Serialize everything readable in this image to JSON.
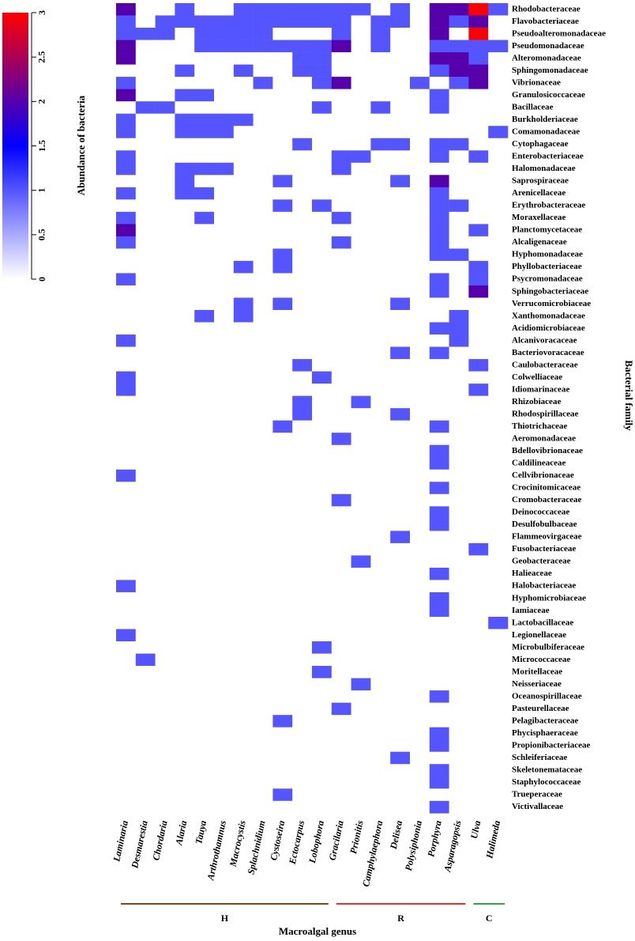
{
  "chart_data": {
    "type": "heatmap",
    "x_label": "Macroalgal genus",
    "y_label": "Bacterial family",
    "colorbar_label": "Abundance of bacteria",
    "colorscale": [
      "#ffffff",
      "#0000ff",
      "#ff0000"
    ],
    "zlim": [
      0,
      3
    ],
    "zticks": [
      0,
      0.5,
      1,
      1.5,
      2,
      2.5,
      3
    ],
    "columns": [
      "Laminaria",
      "Desmarestia",
      "Chordaria",
      "Alaria",
      "Tauya",
      "Arthrothamnus",
      "Macrocystis",
      "Splachnidium",
      "Cystoseira",
      "Ectocarpus",
      "Lobophora",
      "Gracilaria",
      "Prionitis",
      "Camphylaephora",
      "Delisea",
      "Polysiphonia",
      "Porphyra",
      "Asparagopsis",
      "Ulva",
      "Halimeda"
    ],
    "groups": [
      {
        "label": "H",
        "first": 0,
        "last": 10,
        "color": "#7a4a10"
      },
      {
        "label": "R",
        "first": 11,
        "last": 17,
        "color": "#e8302a"
      },
      {
        "label": "C",
        "first": 18,
        "last": 19,
        "color": "#2aa84a"
      }
    ],
    "rows": [
      "Rhodobacteraceae",
      "Flavobacteriaceae",
      "Pseudoalteromonadaceae",
      "Pseudomonadaceae",
      "Alteromonadaceae",
      "Sphingomonadaceae",
      "Vibrionaceae",
      "Granulosicoccaceae",
      "Bacillaceae",
      "Burkholderiaceae",
      "Comamonadaceae",
      "Cytophagaceae",
      "Enterobacteriaceae",
      "Halomonadaceae",
      "Saprospiraceae",
      "Arenicellaceae",
      "Erythrobacteraceae",
      "Moraxellaceae",
      "Planctomycetaceae",
      "Alcaligenaceae",
      "Hyphomonadaceae",
      "Phyllobacteriaceae",
      "Psycromonadaceae",
      "Sphingobacteriaceae",
      "Verrucomicrobiaceae",
      "Xanthomonadaceae",
      "Acidiomicrobiaceae",
      "Alcanivoracaceae",
      "Bacteriovoracaceae",
      "Caulobacteraceae",
      "Colwelliaceae",
      "Idiomarinaceae",
      "Rhizobiaceae",
      "Rhodospirillaceae",
      "Thiotrichaceae",
      "Aeromonadaceae",
      "Bdellovibrionaceae",
      "Caldilineaceae",
      "Cellvibrionaceae",
      "Crocinitomicaceae",
      "Cromobacteraceae",
      "Deinococcaceae",
      "Desulfobulbaceae",
      "Flammeovirgaceae",
      "Fusobacteriaceae",
      "Geobacteraceae",
      "Halieaceae",
      "Halobacteriaceae",
      "Hyphomicrobiaceae",
      "Iamiaceae",
      "Lactobacillaceae",
      "Legionellaceae",
      "Microbulbiferaceae",
      "Micrococcaceae",
      "Moritellaceae",
      "Neisseriaceae",
      "Oceanospirillaceae",
      "Pasteurellaceae",
      "Pelagibacteraceae",
      "Phycisphaeraceae",
      "Propionibacteriaceae",
      "Schleiferiaceae",
      "Skeletonemataceae",
      "Staphylococcaceae",
      "Trueperaceae",
      "Victivallaceae"
    ],
    "values": [
      [
        2,
        0,
        0,
        1,
        0,
        0,
        1,
        1,
        1,
        1,
        1,
        1,
        1,
        0,
        1,
        0,
        2,
        2,
        3,
        1
      ],
      [
        1,
        0,
        1,
        1,
        1,
        1,
        1,
        1,
        1,
        1,
        1,
        1,
        0,
        1,
        1,
        0,
        2,
        1,
        2,
        0
      ],
      [
        1,
        1,
        1,
        0,
        1,
        1,
        1,
        1,
        0,
        0,
        0,
        1,
        0,
        1,
        0,
        0,
        2,
        0,
        3,
        0
      ],
      [
        2,
        0,
        0,
        0,
        1,
        1,
        1,
        1,
        1,
        1,
        1,
        2,
        0,
        1,
        0,
        0,
        1,
        1,
        1,
        1
      ],
      [
        2,
        0,
        0,
        0,
        0,
        0,
        0,
        0,
        0,
        1,
        1,
        0,
        0,
        0,
        0,
        0,
        2,
        2,
        1,
        0
      ],
      [
        0,
        0,
        0,
        1,
        0,
        0,
        1,
        0,
        0,
        1,
        1,
        0,
        0,
        0,
        0,
        0,
        1,
        2,
        2,
        0
      ],
      [
        1,
        0,
        0,
        0,
        0,
        0,
        0,
        1,
        0,
        0,
        1,
        2,
        0,
        0,
        0,
        1,
        0,
        1,
        2,
        0
      ],
      [
        2,
        0,
        0,
        1,
        1,
        0,
        0,
        0,
        0,
        0,
        0,
        0,
        0,
        0,
        0,
        0,
        1,
        0,
        0,
        0
      ],
      [
        0,
        1,
        1,
        0,
        0,
        0,
        0,
        0,
        0,
        0,
        1,
        0,
        0,
        1,
        0,
        0,
        1,
        0,
        0,
        0
      ],
      [
        1,
        0,
        0,
        1,
        1,
        1,
        1,
        0,
        0,
        0,
        0,
        0,
        0,
        0,
        0,
        0,
        0,
        0,
        0,
        0
      ],
      [
        1,
        0,
        0,
        1,
        1,
        1,
        0,
        0,
        0,
        0,
        0,
        0,
        0,
        0,
        0,
        0,
        0,
        0,
        0,
        1
      ],
      [
        0,
        0,
        0,
        0,
        0,
        0,
        0,
        0,
        0,
        1,
        0,
        0,
        0,
        1,
        1,
        0,
        1,
        1,
        0,
        0
      ],
      [
        1,
        0,
        0,
        0,
        0,
        0,
        0,
        0,
        0,
        0,
        0,
        1,
        1,
        0,
        0,
        0,
        1,
        0,
        1,
        0
      ],
      [
        1,
        0,
        0,
        1,
        1,
        1,
        0,
        0,
        0,
        0,
        0,
        1,
        0,
        0,
        0,
        0,
        0,
        0,
        0,
        0
      ],
      [
        0,
        0,
        0,
        1,
        0,
        0,
        0,
        0,
        1,
        0,
        0,
        0,
        0,
        0,
        1,
        0,
        2,
        0,
        0,
        0
      ],
      [
        1,
        0,
        0,
        1,
        1,
        0,
        0,
        0,
        0,
        0,
        0,
        0,
        0,
        0,
        0,
        0,
        1,
        0,
        0,
        0
      ],
      [
        0,
        0,
        0,
        0,
        0,
        0,
        0,
        0,
        1,
        0,
        1,
        0,
        0,
        0,
        0,
        0,
        1,
        1,
        0,
        0
      ],
      [
        1,
        0,
        0,
        0,
        1,
        0,
        0,
        0,
        0,
        0,
        0,
        1,
        0,
        0,
        0,
        0,
        1,
        0,
        0,
        0
      ],
      [
        2,
        0,
        0,
        0,
        0,
        0,
        0,
        0,
        0,
        0,
        0,
        0,
        0,
        0,
        0,
        0,
        1,
        0,
        1,
        0
      ],
      [
        1,
        0,
        0,
        0,
        0,
        0,
        0,
        0,
        0,
        0,
        0,
        1,
        0,
        0,
        0,
        0,
        1,
        0,
        0,
        0
      ],
      [
        0,
        0,
        0,
        0,
        0,
        0,
        0,
        0,
        1,
        0,
        0,
        0,
        0,
        0,
        0,
        0,
        1,
        1,
        0,
        0
      ],
      [
        0,
        0,
        0,
        0,
        0,
        0,
        1,
        0,
        1,
        0,
        0,
        0,
        0,
        0,
        0,
        0,
        0,
        0,
        1,
        0
      ],
      [
        1,
        0,
        0,
        0,
        0,
        0,
        0,
        0,
        0,
        0,
        0,
        0,
        0,
        0,
        0,
        0,
        1,
        0,
        1,
        0
      ],
      [
        0,
        0,
        0,
        0,
        0,
        0,
        0,
        0,
        0,
        0,
        0,
        0,
        0,
        0,
        0,
        0,
        1,
        0,
        2,
        0
      ],
      [
        0,
        0,
        0,
        0,
        0,
        0,
        1,
        0,
        1,
        0,
        0,
        0,
        0,
        0,
        1,
        0,
        0,
        0,
        0,
        0
      ],
      [
        0,
        0,
        0,
        0,
        1,
        0,
        1,
        0,
        0,
        0,
        0,
        0,
        0,
        0,
        0,
        0,
        0,
        1,
        0,
        0
      ],
      [
        0,
        0,
        0,
        0,
        0,
        0,
        0,
        0,
        0,
        0,
        0,
        0,
        0,
        0,
        0,
        0,
        1,
        1,
        0,
        0
      ],
      [
        1,
        0,
        0,
        0,
        0,
        0,
        0,
        0,
        0,
        0,
        0,
        0,
        0,
        0,
        0,
        0,
        0,
        1,
        0,
        0
      ],
      [
        0,
        0,
        0,
        0,
        0,
        0,
        0,
        0,
        0,
        0,
        0,
        0,
        0,
        0,
        1,
        0,
        1,
        0,
        0,
        0
      ],
      [
        0,
        0,
        0,
        0,
        0,
        0,
        0,
        0,
        0,
        1,
        0,
        0,
        0,
        0,
        0,
        0,
        0,
        0,
        1,
        0
      ],
      [
        1,
        0,
        0,
        0,
        0,
        0,
        0,
        0,
        0,
        0,
        1,
        0,
        0,
        0,
        0,
        0,
        0,
        0,
        0,
        0
      ],
      [
        1,
        0,
        0,
        0,
        0,
        0,
        0,
        0,
        0,
        0,
        0,
        0,
        0,
        0,
        0,
        0,
        0,
        0,
        1,
        0
      ],
      [
        0,
        0,
        0,
        0,
        0,
        0,
        0,
        0,
        0,
        1,
        0,
        0,
        1,
        0,
        0,
        0,
        0,
        0,
        0,
        0
      ],
      [
        0,
        0,
        0,
        0,
        0,
        0,
        0,
        0,
        0,
        1,
        0,
        0,
        0,
        0,
        1,
        0,
        0,
        0,
        0,
        0
      ],
      [
        0,
        0,
        0,
        0,
        0,
        0,
        0,
        0,
        1,
        0,
        0,
        0,
        0,
        0,
        0,
        0,
        1,
        0,
        0,
        0
      ],
      [
        0,
        0,
        0,
        0,
        0,
        0,
        0,
        0,
        0,
        0,
        0,
        1,
        0,
        0,
        0,
        0,
        0,
        0,
        0,
        0
      ],
      [
        0,
        0,
        0,
        0,
        0,
        0,
        0,
        0,
        0,
        0,
        0,
        0,
        0,
        0,
        0,
        0,
        1,
        0,
        0,
        0
      ],
      [
        0,
        0,
        0,
        0,
        0,
        0,
        0,
        0,
        0,
        0,
        0,
        0,
        0,
        0,
        0,
        0,
        1,
        0,
        0,
        0
      ],
      [
        1,
        0,
        0,
        0,
        0,
        0,
        0,
        0,
        0,
        0,
        0,
        0,
        0,
        0,
        0,
        0,
        0,
        0,
        0,
        0
      ],
      [
        0,
        0,
        0,
        0,
        0,
        0,
        0,
        0,
        0,
        0,
        0,
        0,
        0,
        0,
        0,
        0,
        1,
        0,
        0,
        0
      ],
      [
        0,
        0,
        0,
        0,
        0,
        0,
        0,
        0,
        0,
        0,
        0,
        1,
        0,
        0,
        0,
        0,
        0,
        0,
        0,
        0
      ],
      [
        0,
        0,
        0,
        0,
        0,
        0,
        0,
        0,
        0,
        0,
        0,
        0,
        0,
        0,
        0,
        0,
        1,
        0,
        0,
        0
      ],
      [
        0,
        0,
        0,
        0,
        0,
        0,
        0,
        0,
        0,
        0,
        0,
        0,
        0,
        0,
        0,
        0,
        1,
        0,
        0,
        0
      ],
      [
        0,
        0,
        0,
        0,
        0,
        0,
        0,
        0,
        0,
        0,
        0,
        0,
        0,
        0,
        1,
        0,
        0,
        0,
        0,
        0
      ],
      [
        0,
        0,
        0,
        0,
        0,
        0,
        0,
        0,
        0,
        0,
        0,
        0,
        0,
        0,
        0,
        0,
        0,
        0,
        1,
        0
      ],
      [
        0,
        0,
        0,
        0,
        0,
        0,
        0,
        0,
        0,
        0,
        0,
        0,
        1,
        0,
        0,
        0,
        0,
        0,
        0,
        0
      ],
      [
        0,
        0,
        0,
        0,
        0,
        0,
        0,
        0,
        0,
        0,
        0,
        0,
        0,
        0,
        0,
        0,
        1,
        0,
        0,
        0
      ],
      [
        1,
        0,
        0,
        0,
        0,
        0,
        0,
        0,
        0,
        0,
        0,
        0,
        0,
        0,
        0,
        0,
        0,
        0,
        0,
        0
      ],
      [
        0,
        0,
        0,
        0,
        0,
        0,
        0,
        0,
        0,
        0,
        0,
        0,
        0,
        0,
        0,
        0,
        1,
        0,
        0,
        0
      ],
      [
        0,
        0,
        0,
        0,
        0,
        0,
        0,
        0,
        0,
        0,
        0,
        0,
        0,
        0,
        0,
        0,
        1,
        0,
        0,
        0
      ],
      [
        0,
        0,
        0,
        0,
        0,
        0,
        0,
        0,
        0,
        0,
        0,
        0,
        0,
        0,
        0,
        0,
        0,
        0,
        0,
        1
      ],
      [
        1,
        0,
        0,
        0,
        0,
        0,
        0,
        0,
        0,
        0,
        0,
        0,
        0,
        0,
        0,
        0,
        0,
        0,
        0,
        0
      ],
      [
        0,
        0,
        0,
        0,
        0,
        0,
        0,
        0,
        0,
        0,
        1,
        0,
        0,
        0,
        0,
        0,
        0,
        0,
        0,
        0
      ],
      [
        0,
        1,
        0,
        0,
        0,
        0,
        0,
        0,
        0,
        0,
        0,
        0,
        0,
        0,
        0,
        0,
        0,
        0,
        0,
        0
      ],
      [
        0,
        0,
        0,
        0,
        0,
        0,
        0,
        0,
        0,
        0,
        1,
        0,
        0,
        0,
        0,
        0,
        0,
        0,
        0,
        0
      ],
      [
        0,
        0,
        0,
        0,
        0,
        0,
        0,
        0,
        0,
        0,
        0,
        0,
        1,
        0,
        0,
        0,
        0,
        0,
        0,
        0
      ],
      [
        0,
        0,
        0,
        0,
        0,
        0,
        0,
        0,
        0,
        0,
        0,
        0,
        0,
        0,
        0,
        0,
        1,
        0,
        0,
        0
      ],
      [
        0,
        0,
        0,
        0,
        0,
        0,
        0,
        0,
        0,
        0,
        0,
        1,
        0,
        0,
        0,
        0,
        0,
        0,
        0,
        0
      ],
      [
        0,
        0,
        0,
        0,
        0,
        0,
        0,
        0,
        1,
        0,
        0,
        0,
        0,
        0,
        0,
        0,
        0,
        0,
        0,
        0
      ],
      [
        0,
        0,
        0,
        0,
        0,
        0,
        0,
        0,
        0,
        0,
        0,
        0,
        0,
        0,
        0,
        0,
        1,
        0,
        0,
        0
      ],
      [
        0,
        0,
        0,
        0,
        0,
        0,
        0,
        0,
        0,
        0,
        0,
        0,
        0,
        0,
        0,
        0,
        1,
        0,
        0,
        0
      ],
      [
        0,
        0,
        0,
        0,
        0,
        0,
        0,
        0,
        0,
        0,
        0,
        0,
        0,
        0,
        1,
        0,
        0,
        0,
        0,
        0
      ],
      [
        0,
        0,
        0,
        0,
        0,
        0,
        0,
        0,
        0,
        0,
        0,
        0,
        0,
        0,
        0,
        0,
        1,
        0,
        0,
        0
      ],
      [
        0,
        0,
        0,
        0,
        0,
        0,
        0,
        0,
        0,
        0,
        0,
        0,
        0,
        0,
        0,
        0,
        1,
        0,
        0,
        0
      ],
      [
        0,
        0,
        0,
        0,
        0,
        0,
        0,
        0,
        1,
        0,
        0,
        0,
        0,
        0,
        0,
        0,
        0,
        0,
        0,
        0
      ],
      [
        0,
        0,
        0,
        0,
        0,
        0,
        0,
        0,
        0,
        0,
        0,
        0,
        0,
        0,
        0,
        0,
        1,
        0,
        0,
        0
      ]
    ]
  }
}
